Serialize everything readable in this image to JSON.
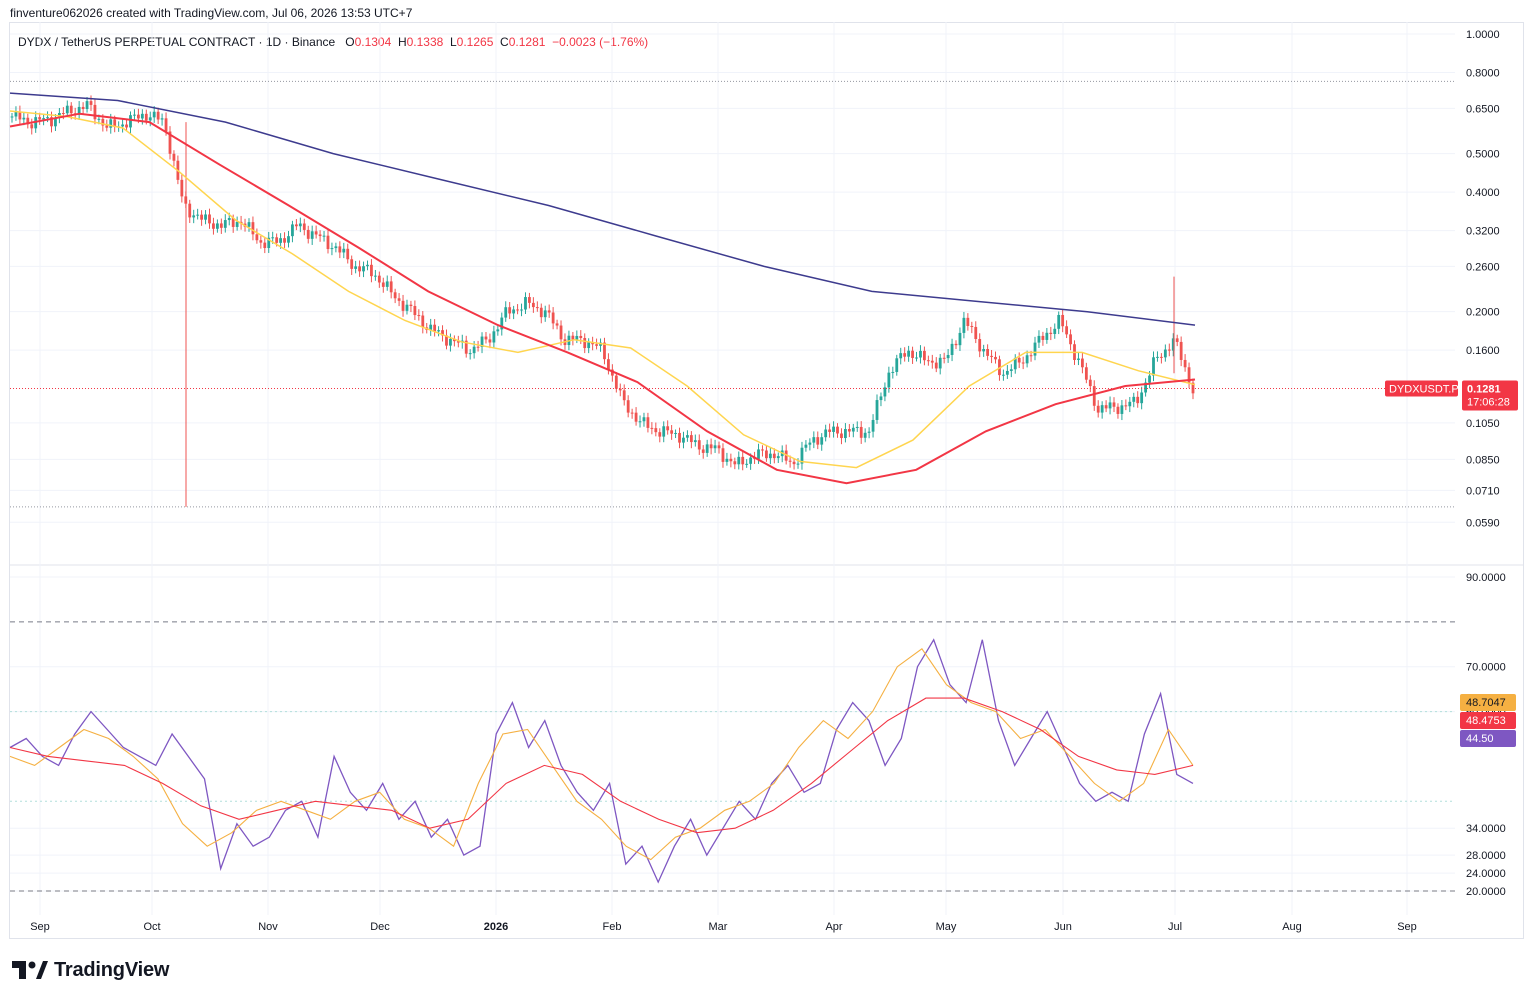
{
  "header": {
    "creator": "finventure062026 created with TradingView.com, Jul 06, 2026 13:53 UTC+7",
    "symbol_line": "DYDX / TetherUS PERPETUAL CONTRACT · 1D · Binance",
    "ohlc": {
      "O": "0.1304",
      "H": "0.1338",
      "L": "0.1265",
      "C": "0.1281",
      "change": "−0.0023 (−1.76%)"
    }
  },
  "brand": {
    "name": "TradingView"
  },
  "colors": {
    "up": "#26a69a",
    "down": "#ef5350",
    "ma_fast": "#ffd54f",
    "ma_mid": "#f23645",
    "ma_slow": "#3d3b8e",
    "rsi": "#7e57c2",
    "rsi_ma": "#f5b042",
    "rsi_ma2": "#f23645"
  },
  "chart_data": [
    {
      "type": "candlestick",
      "title": "DYDX / TetherUS PERPETUAL CONTRACT · 1D · Binance",
      "scale": "log",
      "ylim": [
        0.0545,
        1.0
      ],
      "y_ticks": [
        "1.0000",
        "0.8000",
        "0.6500",
        "0.5000",
        "0.4000",
        "0.3200",
        "0.2600",
        "0.2000",
        "0.1600",
        "0.1050",
        "0.0850",
        "0.0710",
        "0.0590"
      ],
      "x_ticks": [
        "Sep",
        "Oct",
        "Nov",
        "Dec",
        "2026",
        "Feb",
        "Mar",
        "Apr",
        "May",
        "Jun",
        "Jul",
        "Aug",
        "Sep"
      ],
      "last_price": {
        "label": "DYDXUSDT.P",
        "value": "0.1281",
        "countdown": "17:06:28"
      },
      "dotted_levels": [
        0.76,
        0.0645
      ],
      "weekly_closes": [
        0.62,
        0.6,
        0.61,
        0.64,
        0.66,
        0.58,
        0.6,
        0.63,
        0.6,
        0.37,
        0.34,
        0.33,
        0.34,
        0.3,
        0.3,
        0.33,
        0.31,
        0.29,
        0.26,
        0.25,
        0.22,
        0.2,
        0.18,
        0.17,
        0.16,
        0.17,
        0.2,
        0.21,
        0.2,
        0.17,
        0.17,
        0.16,
        0.12,
        0.105,
        0.1,
        0.098,
        0.092,
        0.09,
        0.082,
        0.087,
        0.088,
        0.083,
        0.095,
        0.1,
        0.1,
        0.1,
        0.14,
        0.16,
        0.15,
        0.15,
        0.19,
        0.16,
        0.14,
        0.15,
        0.17,
        0.19,
        0.15,
        0.114,
        0.115,
        0.118,
        0.15,
        0.17,
        0.128
      ],
      "series": [
        {
          "name": "Fast MA",
          "values": [
            0.64,
            0.62,
            0.58,
            0.45,
            0.34,
            0.28,
            0.225,
            0.19,
            0.168,
            0.158,
            0.17,
            0.162,
            0.13,
            0.098,
            0.084,
            0.081,
            0.095,
            0.13,
            0.158,
            0.158,
            0.142,
            0.131
          ]
        },
        {
          "name": "Mid MA",
          "values": [
            0.585,
            0.63,
            0.6,
            0.47,
            0.37,
            0.29,
            0.225,
            0.185,
            0.158,
            0.133,
            0.1,
            0.08,
            0.074,
            0.08,
            0.1,
            0.117,
            0.13,
            0.135
          ]
        },
        {
          "name": "Slow MA",
          "values": [
            0.71,
            0.68,
            0.6,
            0.5,
            0.43,
            0.37,
            0.31,
            0.26,
            0.225,
            0.212,
            0.2,
            0.185
          ]
        }
      ]
    },
    {
      "type": "line",
      "title": "",
      "ylim": [
        18,
        90
      ],
      "y_ticks": [
        "90.0000",
        "70.0000",
        "60.0000",
        "34.0000",
        "28.0000",
        "24.0000",
        "20.0000"
      ],
      "dashed_levels": [
        80,
        20
      ],
      "dotted_levels": [
        60,
        40
      ],
      "last_values": {
        "rsi_ma": "48.7047",
        "rsi_ma2": "48.4753",
        "rsi": "44.50"
      },
      "series": [
        {
          "name": "",
          "values": [
            52,
            54,
            50,
            48,
            55,
            60,
            56,
            52,
            50,
            48,
            55,
            50,
            45,
            25,
            35,
            30,
            32,
            38,
            40,
            32,
            50,
            42,
            38,
            44,
            36,
            40,
            32,
            36,
            28,
            30,
            55,
            62,
            52,
            58,
            48,
            42,
            38,
            44,
            26,
            30,
            22,
            30,
            36,
            28,
            34,
            40,
            36,
            44,
            48,
            42,
            44,
            56,
            62,
            58,
            48,
            54,
            70,
            76,
            66,
            62,
            76,
            58,
            48,
            54,
            60,
            52,
            44,
            40,
            42,
            40,
            55,
            64,
            46,
            44
          ]
        },
        {
          "name": "",
          "values": [
            50,
            48,
            52,
            56,
            54,
            50,
            45,
            35,
            30,
            33,
            38,
            40,
            38,
            36,
            40,
            42,
            36,
            34,
            30,
            44,
            55,
            56,
            48,
            40,
            36,
            30,
            27,
            32,
            34,
            38,
            40,
            44,
            52,
            58,
            54,
            60,
            70,
            74,
            66,
            62,
            60,
            54,
            56,
            50,
            44,
            40,
            44,
            56,
            48
          ]
        },
        {
          "name": "",
          "values": [
            52,
            50,
            49,
            48,
            44,
            39,
            36,
            38,
            40,
            39,
            38,
            34,
            36,
            44,
            48,
            46,
            40,
            36,
            33,
            34,
            38,
            44,
            51,
            58,
            63,
            63,
            60,
            56,
            50,
            47,
            46,
            48
          ]
        }
      ]
    }
  ]
}
